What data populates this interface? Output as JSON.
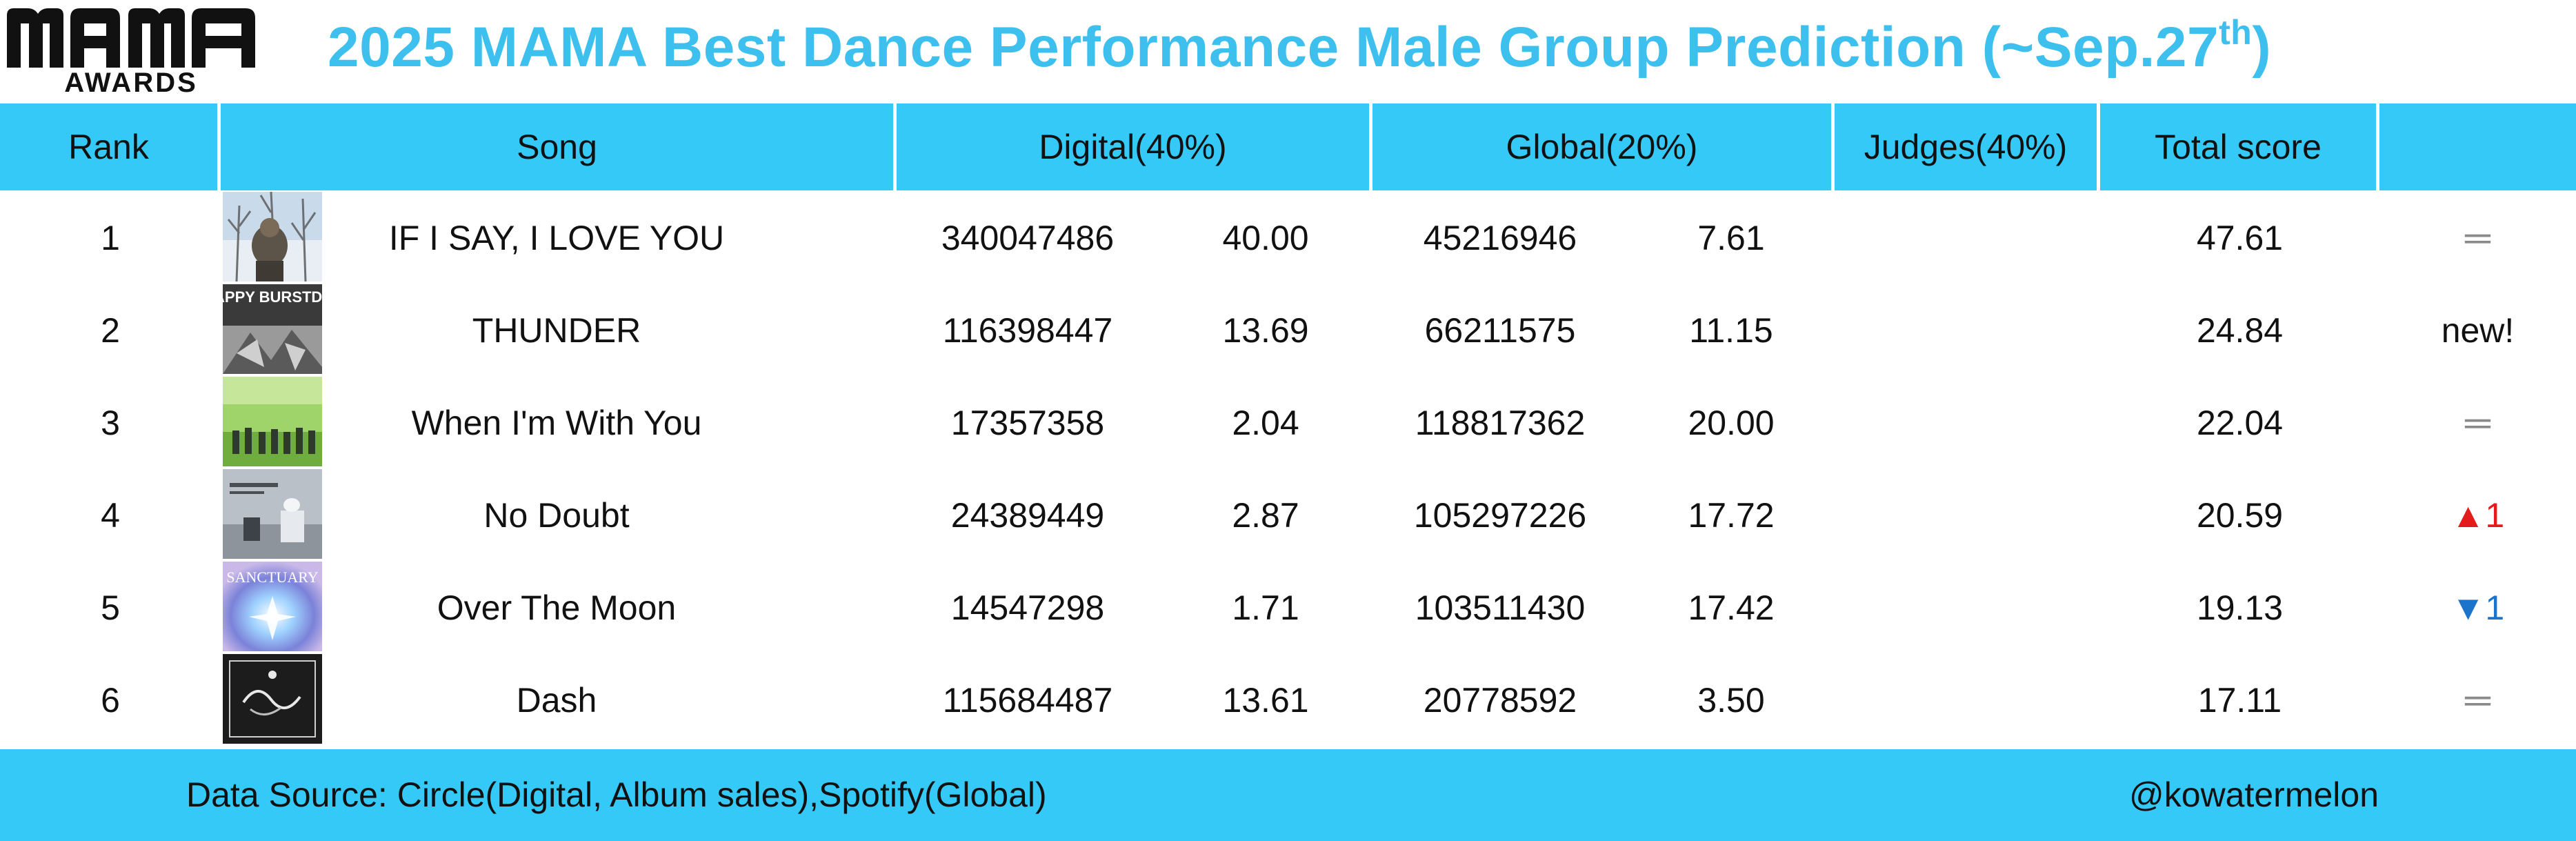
{
  "logo": {
    "wordmark": "MAMA",
    "subtext": "AWARDS"
  },
  "title": {
    "main": "2025 MAMA Best Dance Performance Male Group Prediction (~Sep.27",
    "sup": "th",
    "close": ")"
  },
  "columns": {
    "rank": "Rank",
    "song": "Song",
    "digital": "Digital(40%)",
    "global": "Global(20%)",
    "judges": "Judges(40%)",
    "total": "Total score",
    "change": ""
  },
  "rows": [
    {
      "rank": "1",
      "song": "IF I SAY, I LOVE YOU",
      "digital_raw": "340047486",
      "digital_score": "40.00",
      "global_raw": "45216946",
      "global_score": "7.61",
      "judges": "",
      "total": "47.61",
      "change": "═",
      "change_type": "same",
      "cover": "winter-tree-cover-art"
    },
    {
      "rank": "2",
      "song": "THUNDER",
      "digital_raw": "116398447",
      "digital_score": "13.69",
      "global_raw": "66211575",
      "global_score": "11.15",
      "judges": "",
      "total": "24.84",
      "change": "new!",
      "change_type": "new",
      "cover": "happy-burstday-cover-art"
    },
    {
      "rank": "3",
      "song": "When I'm With You",
      "digital_raw": "17357358",
      "digital_score": "2.04",
      "global_raw": "118817362",
      "global_score": "20.00",
      "judges": "",
      "total": "22.04",
      "change": "═",
      "change_type": "same",
      "cover": "green-field-cover-art"
    },
    {
      "rank": "4",
      "song": "No Doubt",
      "digital_raw": "24389449",
      "digital_score": "2.87",
      "global_raw": "105297226",
      "global_score": "17.72",
      "judges": "",
      "total": "20.59",
      "change": "▲1",
      "change_type": "up",
      "cover": "gray-room-cover-art"
    },
    {
      "rank": "5",
      "song": "Over The Moon",
      "digital_raw": "14547298",
      "digital_score": "1.71",
      "global_raw": "103511430",
      "global_score": "17.42",
      "judges": "",
      "total": "19.13",
      "change": "▼1",
      "change_type": "down",
      "cover": "sanctuary-cover-art"
    },
    {
      "rank": "6",
      "song": "Dash",
      "digital_raw": "115684487",
      "digital_score": "13.61",
      "global_raw": "20778592",
      "global_score": "3.50",
      "judges": "",
      "total": "17.11",
      "change": "═",
      "change_type": "same",
      "cover": "dark-script-cover-art"
    }
  ],
  "cover_texts": {
    "thunder": "HAPPY BURSTDAY",
    "over_the_moon": "SANCTUARY"
  },
  "footer": {
    "source": "Data Source: Circle(Digital, Album sales),Spotify(Global)",
    "credit": "@kowatermelon"
  },
  "colors": {
    "title": "#3dc0ee",
    "band": "#35c9f7",
    "up": "#e41b1b",
    "down": "#1b74c9",
    "same": "#8a8a8a"
  }
}
